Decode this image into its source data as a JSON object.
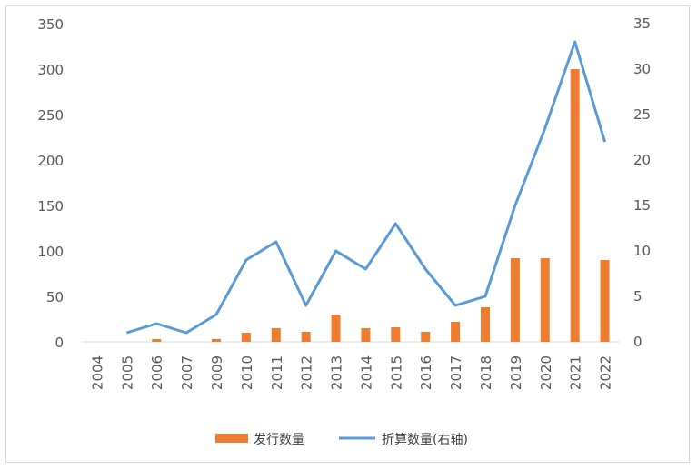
{
  "chart_data": {
    "type": "bar+line",
    "categories": [
      "2004",
      "2005",
      "2006",
      "2007",
      "2009",
      "2010",
      "2011",
      "2012",
      "2013",
      "2014",
      "2015",
      "2016",
      "2017",
      "2018",
      "2019",
      "2020",
      "2021",
      "2022"
    ],
    "series": [
      {
        "name": "发行数量",
        "type": "bar",
        "axis": "left",
        "color": "#ED7D31",
        "values": [
          0,
          0,
          3,
          0,
          3,
          10,
          15,
          11,
          30,
          15,
          16,
          11,
          22,
          38,
          92,
          92,
          300,
          90
        ]
      },
      {
        "name": "折算数量(右轴)",
        "type": "line",
        "axis": "right",
        "color": "#5B9BD5",
        "values": [
          null,
          1,
          2,
          1,
          3,
          9,
          11,
          4,
          10,
          8,
          13,
          8,
          4,
          5,
          15,
          23.5,
          33,
          22
        ]
      }
    ],
    "y_left": {
      "min": 0,
      "max": 350,
      "ticks": [
        "0",
        "50",
        "100",
        "150",
        "200",
        "250",
        "300",
        "350"
      ]
    },
    "y_right": {
      "min": 0,
      "max": 35,
      "ticks": [
        "0",
        "5",
        "10",
        "15",
        "20",
        "25",
        "30",
        "35"
      ]
    },
    "grid": false,
    "legend_position": "bottom"
  }
}
